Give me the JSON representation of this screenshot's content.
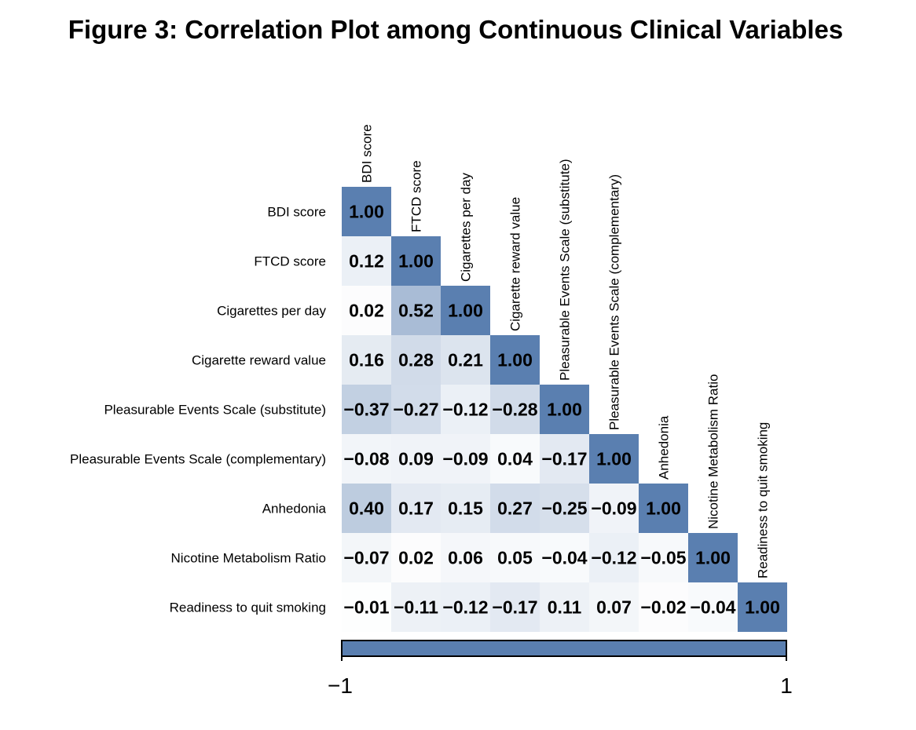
{
  "chart_data": {
    "type": "heatmap",
    "title": "Figure 3: Correlation Plot among Continuous Clinical Variables",
    "variables": [
      "BDI score",
      "FTCD score",
      "Cigarettes per day",
      "Cigarette reward value",
      "Pleasurable Events Scale (substitute)",
      "Pleasurable Events Scale (complementary)",
      "Anhedonia",
      "Nicotine Metabolism Ratio",
      "Readiness to quit smoking"
    ],
    "matrix": [
      [
        1.0
      ],
      [
        0.12,
        1.0
      ],
      [
        0.02,
        0.52,
        1.0
      ],
      [
        0.16,
        0.28,
        0.21,
        1.0
      ],
      [
        -0.37,
        -0.27,
        -0.12,
        -0.28,
        1.0
      ],
      [
        -0.08,
        0.09,
        -0.09,
        0.04,
        -0.17,
        1.0
      ],
      [
        0.4,
        0.17,
        0.15,
        0.27,
        -0.25,
        -0.09,
        1.0
      ],
      [
        -0.07,
        0.02,
        0.06,
        0.05,
        -0.04,
        -0.12,
        -0.05,
        1.0
      ],
      [
        -0.01,
        -0.11,
        -0.12,
        -0.17,
        0.11,
        0.07,
        -0.02,
        -0.04,
        1.0
      ]
    ],
    "color_scale": {
      "min": -1,
      "max": 1,
      "min_label": "−1",
      "max_label": "1",
      "color": "#5a7fb0",
      "zero_color": "#ffffff"
    },
    "legend": "bottom"
  }
}
